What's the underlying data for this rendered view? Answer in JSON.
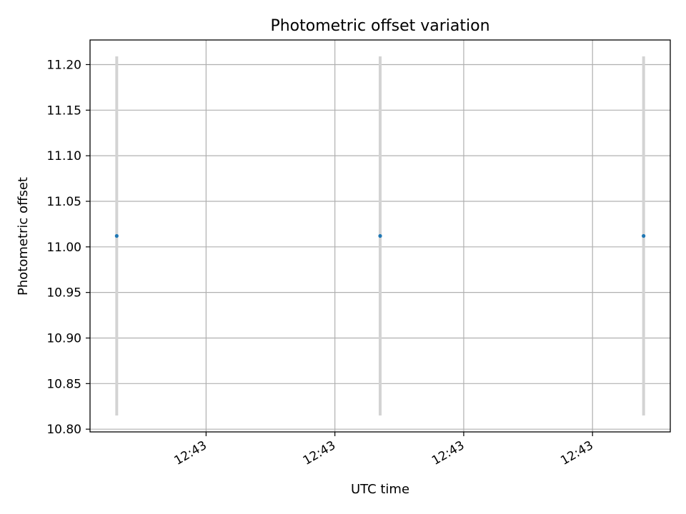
{
  "chart_data": {
    "type": "scatter",
    "title": "Photometric offset variation",
    "xlabel": "UTC time",
    "ylabel": "Photometric offset",
    "grid": true,
    "legend": "none",
    "x_ticks": [
      "12:43",
      "12:43",
      "12:43",
      "12:43"
    ],
    "y_ticks": [
      "10.80",
      "10.85",
      "10.90",
      "10.95",
      "11.00",
      "11.05",
      "11.10",
      "11.15",
      "11.20"
    ],
    "ylim": [
      10.797,
      11.227
    ],
    "series": [
      {
        "values": [
          11.012,
          11.012,
          11.012
        ],
        "error": [
          0.197,
          0.197,
          0.197
        ],
        "color": "#1f77b4",
        "error_color": "#d3d3d3"
      }
    ],
    "point_x_fraction": [
      0.046,
      0.5,
      0.954
    ],
    "x_tick_fraction": [
      0.2,
      0.422,
      0.644,
      0.866
    ]
  }
}
